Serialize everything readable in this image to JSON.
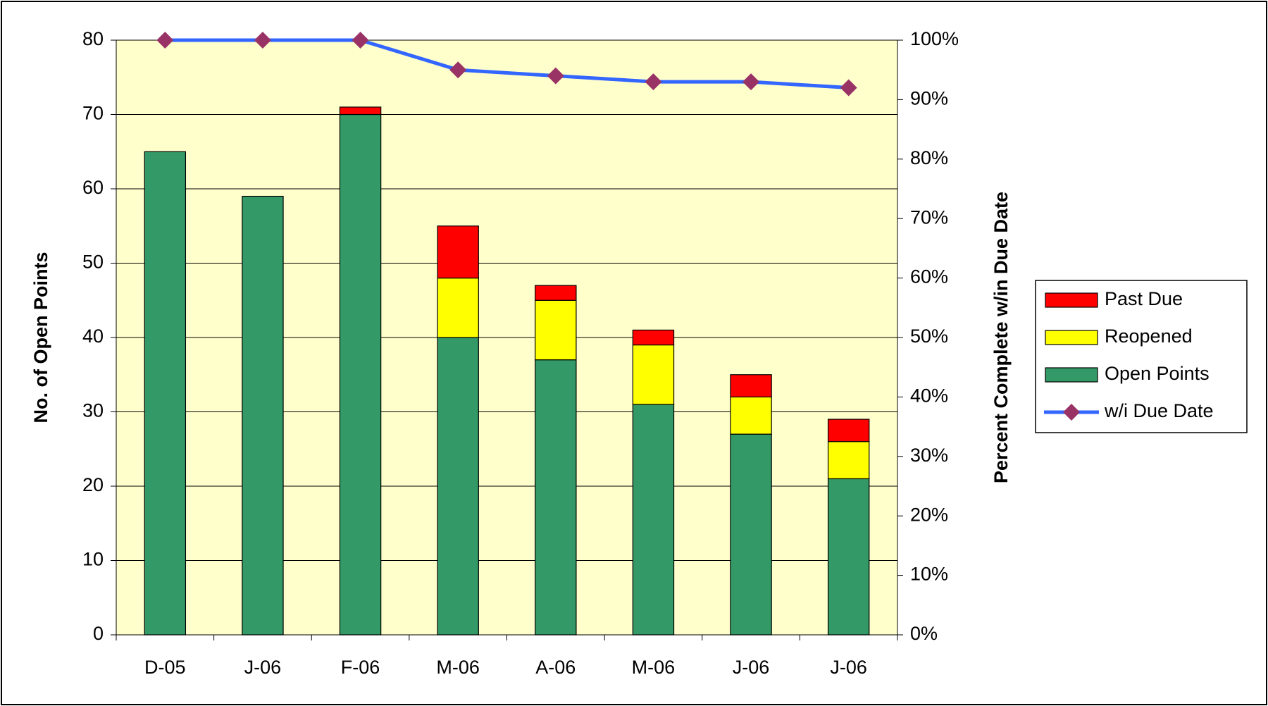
{
  "chart_data": {
    "type": "bar",
    "stacked": true,
    "categories": [
      "D-05",
      "J-06",
      "F-06",
      "M-06",
      "A-06",
      "M-06",
      "J-06",
      "J-06"
    ],
    "series": [
      {
        "name": "Open Points",
        "color": "#339966",
        "values": [
          65,
          59,
          70,
          40,
          37,
          31,
          27,
          21
        ]
      },
      {
        "name": "Reopened",
        "color": "#ffff00",
        "values": [
          0,
          0,
          0,
          8,
          8,
          8,
          5,
          5
        ]
      },
      {
        "name": "Past Due",
        "color": "#ff0000",
        "values": [
          0,
          0,
          1,
          7,
          2,
          2,
          3,
          3
        ]
      },
      {
        "name": "w/i Due Date",
        "type": "line",
        "axis": "y2",
        "color": "#3366ff",
        "marker_color": "#993366",
        "values": [
          100,
          100,
          100,
          95,
          94,
          93,
          93,
          92
        ]
      }
    ],
    "y_label": "No. of Open Points",
    "y2_label": "Percent Complete w/in Due Date",
    "ylim": [
      0,
      80
    ],
    "yticks": [
      0,
      10,
      20,
      30,
      40,
      50,
      60,
      70,
      80
    ],
    "y2lim": [
      0,
      100
    ],
    "y2ticks": [
      {
        "value": 0,
        "label": "0%"
      },
      {
        "value": 10,
        "label": "10%"
      },
      {
        "value": 20,
        "label": "20%"
      },
      {
        "value": 30,
        "label": "30%"
      },
      {
        "value": 40,
        "label": "40%"
      },
      {
        "value": 50,
        "label": "50%"
      },
      {
        "value": 60,
        "label": "60%"
      },
      {
        "value": 70,
        "label": "70%"
      },
      {
        "value": 80,
        "label": "80%"
      },
      {
        "value": 90,
        "label": "90%"
      },
      {
        "value": 100,
        "label": "100%"
      }
    ],
    "grid": true,
    "plot_background": "#ffffcc",
    "legend": "right"
  }
}
